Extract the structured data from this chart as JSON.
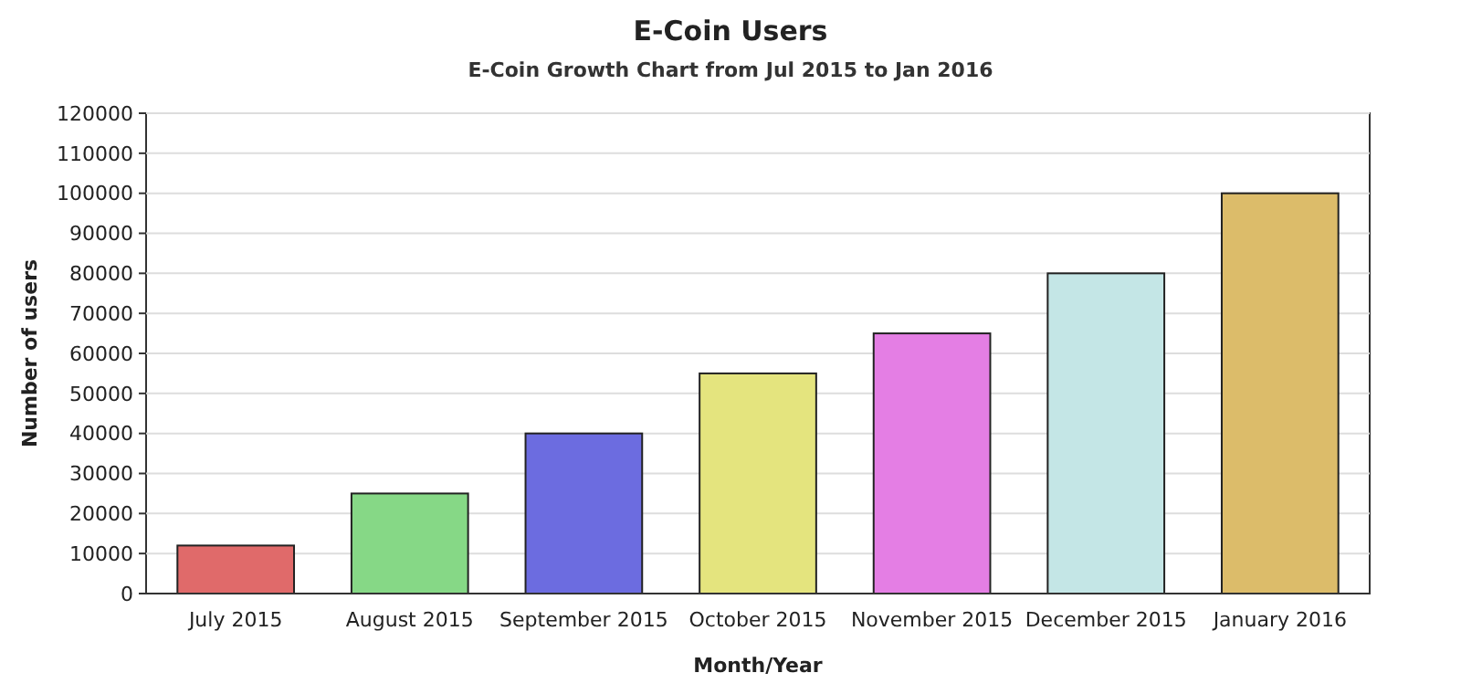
{
  "chart_data": {
    "type": "bar",
    "title": "E-Coin Users",
    "subtitle": "E-Coin Growth Chart from Jul 2015 to Jan 2016",
    "xlabel": "Month/Year",
    "ylabel": "Number of users",
    "categories": [
      "July 2015",
      "August 2015",
      "September 2015",
      "October 2015",
      "November 2015",
      "December 2015",
      "January 2016"
    ],
    "values": [
      12000,
      25000,
      40000,
      55000,
      65000,
      80000,
      100000
    ],
    "colors": [
      "#e06a6a",
      "#86d886",
      "#6c6ce0",
      "#e4e47e",
      "#e47ee4",
      "#c4e6e6",
      "#dcbc6a"
    ],
    "ylim": [
      0,
      120000
    ],
    "yticks": [
      0,
      10000,
      20000,
      30000,
      40000,
      50000,
      60000,
      70000,
      80000,
      90000,
      100000,
      110000,
      120000
    ],
    "grid": "y"
  }
}
